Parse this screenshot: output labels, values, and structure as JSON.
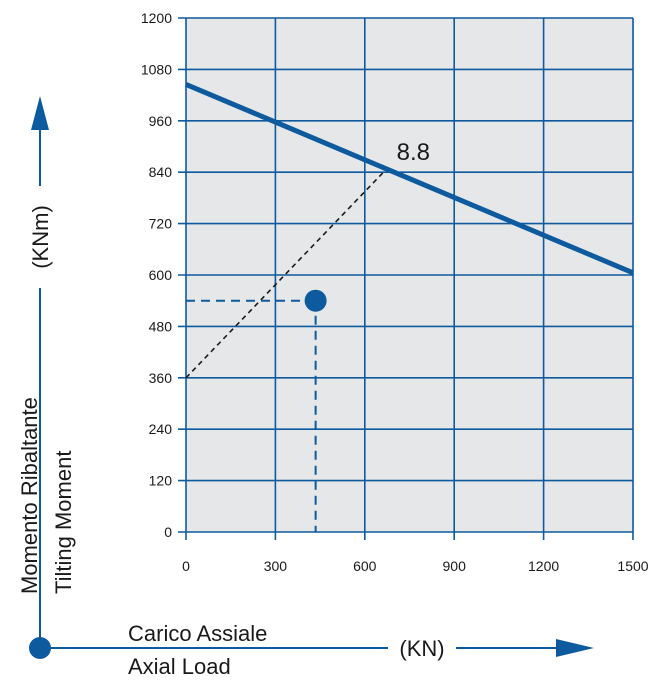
{
  "colors": {
    "plot_background": "#e6e7e8",
    "grid": "#0d5a9e",
    "series": "#0d5a9e",
    "arrow": "#0d5a9e",
    "text": "#1a1a1a",
    "reference_line": "#1a1a1a"
  },
  "chart_data": {
    "type": "line",
    "x": {
      "label_line1": "Carico Assiale",
      "label_line2": "Axial Load",
      "unit": "(KN)",
      "lim": [
        0,
        1500
      ],
      "ticks": [
        0,
        300,
        600,
        900,
        1200,
        1500
      ]
    },
    "y": {
      "label_line1": "Momento Ribaltante",
      "label_line2": "Tilting Moment",
      "unit": "(KNm)",
      "lim": [
        0,
        1200
      ],
      "ticks": [
        0,
        120,
        240,
        360,
        480,
        600,
        720,
        840,
        960,
        1080,
        1200
      ]
    },
    "grid": true,
    "series": [
      {
        "x": [
          0,
          1500
        ],
        "y": [
          1045,
          605
        ],
        "label": "8.8",
        "label_at": [
          700,
          850
        ]
      }
    ],
    "reference_line": {
      "style": "dashed",
      "x": [
        0,
        660
      ],
      "y": [
        360,
        838
      ]
    },
    "operating_point": {
      "x": 435,
      "y": 540
    }
  }
}
